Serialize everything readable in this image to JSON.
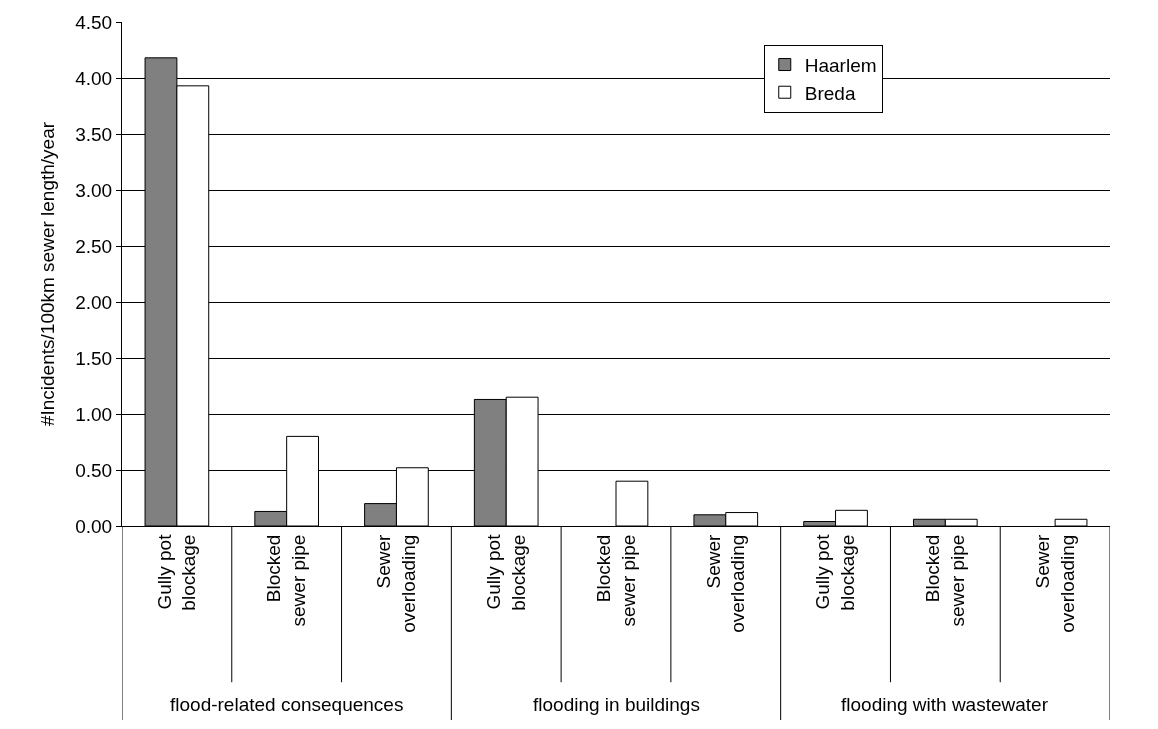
{
  "chart_data": {
    "type": "bar",
    "ylabel": "#Incidents/100km sewer length/year",
    "categories": [
      "Gully pot\nblockage",
      "Blocked\nsewer pipe",
      "Sewer\noverloading",
      "Gully pot\nblockage",
      "Blocked\nsewer pipe",
      "Sewer\noverloading",
      "Gully pot\nblockage",
      "Blocked\nsewer pipe",
      "Sewer\noverloading"
    ],
    "series": [
      {
        "name": "Haarlem",
        "color": "#808080",
        "values": [
          4.18,
          0.13,
          0.2,
          1.13,
          null,
          0.1,
          0.04,
          0.06,
          null
        ]
      },
      {
        "name": "Breda",
        "color": "#ffffff",
        "values": [
          3.93,
          0.8,
          0.52,
          1.15,
          0.4,
          0.12,
          0.14,
          0.06,
          0.06
        ]
      }
    ],
    "annotations": [
      "flood-related consequences",
      "flooding in buildings",
      "flooding with wastewater"
    ],
    "ylim": [
      0,
      4.5
    ],
    "yticks": [
      {
        "value": 0,
        "label": "0.00"
      },
      {
        "value": 0.5,
        "label": "0.50"
      },
      {
        "value": 1,
        "label": "1.00"
      },
      {
        "value": 1.5,
        "label": "1.50"
      },
      {
        "value": 2,
        "label": "2.00"
      },
      {
        "value": 2.5,
        "label": "2.50"
      },
      {
        "value": 3,
        "label": "3.00"
      },
      {
        "value": 3.5,
        "label": "3.50"
      },
      {
        "value": 4,
        "label": "4.00"
      },
      {
        "value": 4.5,
        "label": "4.50"
      }
    ],
    "grid": "y",
    "legend": "top right"
  }
}
